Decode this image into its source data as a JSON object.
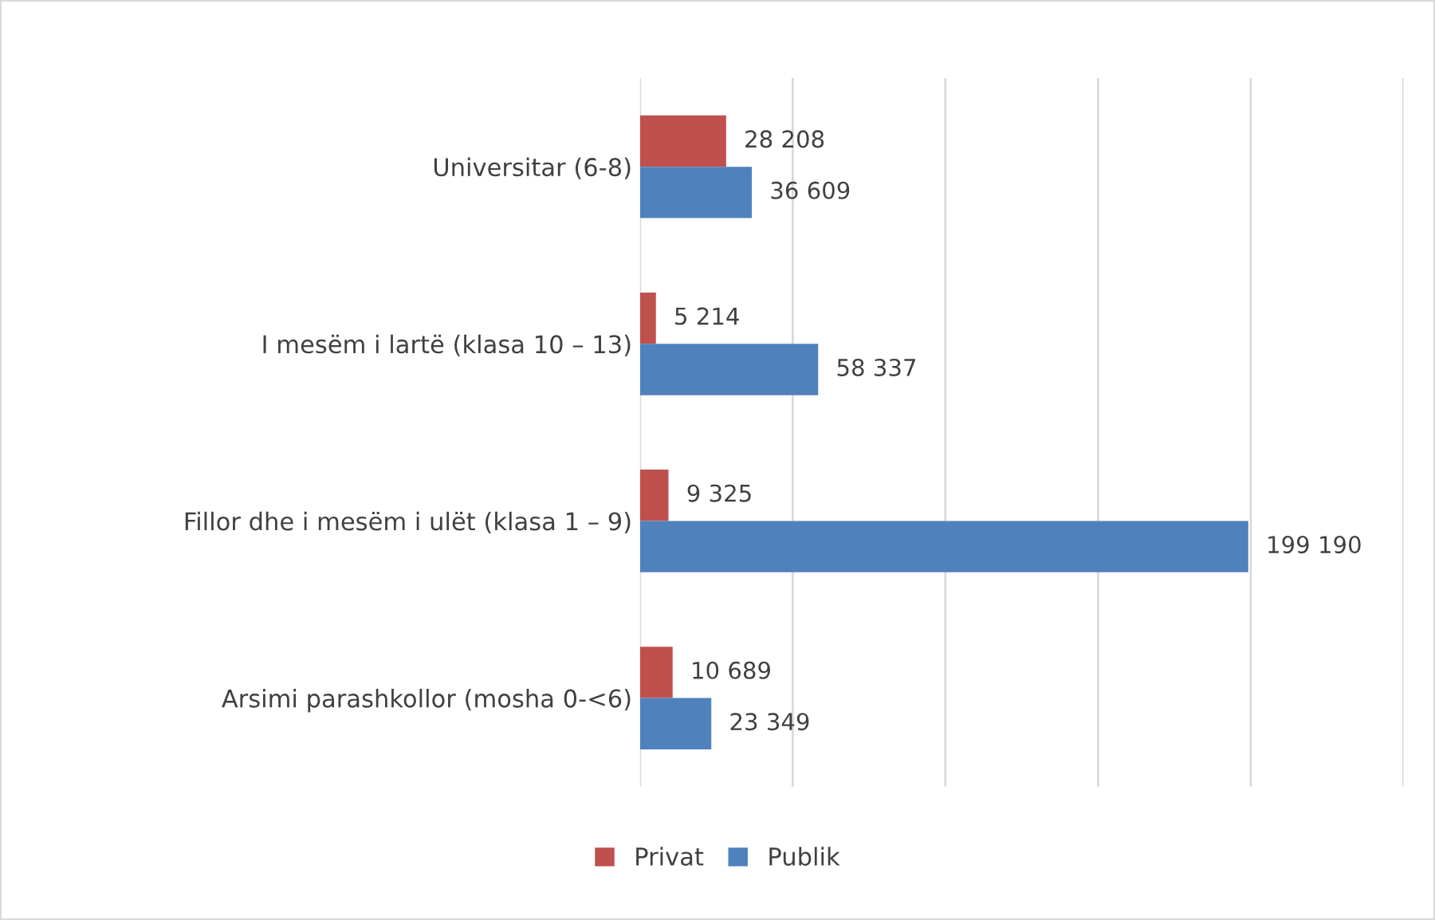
{
  "chart_data": {
    "type": "bar",
    "orientation": "horizontal",
    "categories": [
      "Universitar (6-8)",
      "I mesëm i lartë (klasa 10 – 13)",
      "Fillor dhe i mesëm i ulët (klasa 1 – 9)",
      "Arsimi parashkollor (mosha 0-<6)"
    ],
    "series": [
      {
        "name": "Privat",
        "color": "#c0504d",
        "values": [
          28208,
          5214,
          9325,
          10689
        ],
        "value_labels": [
          "28 208",
          "5 214",
          "9 325",
          "10 689"
        ]
      },
      {
        "name": "Publik",
        "color": "#4f81bd",
        "values": [
          36609,
          58337,
          199190,
          23349
        ],
        "value_labels": [
          "36 609",
          "58 337",
          "199 190",
          "23 349"
        ]
      }
    ],
    "xlim": [
      0,
      250000
    ],
    "xticks": [
      {
        "value": 0,
        "label": null
      },
      {
        "value": 50000,
        "label": null
      },
      {
        "value": 100000,
        "label": null
      },
      {
        "value": 150000,
        "label": null
      },
      {
        "value": 200000,
        "label": null
      },
      {
        "value": 250000,
        "label": null
      }
    ],
    "tick_labels": "y",
    "grid": "x",
    "legend": "bottom"
  }
}
